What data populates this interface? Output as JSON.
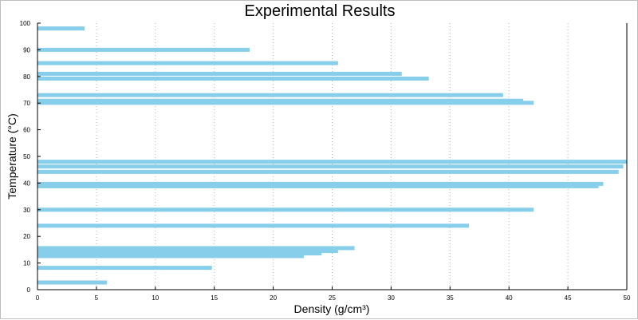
{
  "chart_data": {
    "type": "bar",
    "orientation": "horizontal",
    "title": "Experimental Results",
    "xlabel": "Density (g/cm³)",
    "ylabel": "Temperature (°C)",
    "xlim": [
      0,
      50
    ],
    "ylim": [
      0,
      100
    ],
    "x_ticks": [
      "0",
      "5",
      "10",
      "15",
      "20",
      "25",
      "30",
      "35",
      "40",
      "45",
      "50"
    ],
    "y_ticks": [
      "0",
      "10",
      "20",
      "30",
      "40",
      "50",
      "60",
      "70",
      "80",
      "90",
      "100"
    ],
    "grid": "vertical dotted",
    "bar_color": "#87ceeb",
    "bar_thickness": 1.5,
    "bars": [
      {
        "y": 98.0,
        "value": 4.0
      },
      {
        "y": 90.0,
        "value": 18.0
      },
      {
        "y": 85.0,
        "value": 25.5
      },
      {
        "y": 81.0,
        "value": 30.9
      },
      {
        "y": 79.2,
        "value": 33.2
      },
      {
        "y": 73.0,
        "value": 39.5
      },
      {
        "y": 70.9,
        "value": 41.2
      },
      {
        "y": 70.1,
        "value": 42.1
      },
      {
        "y": 48.0,
        "value": 50.0
      },
      {
        "y": 46.2,
        "value": 49.7
      },
      {
        "y": 44.2,
        "value": 49.3
      },
      {
        "y": 39.7,
        "value": 48.0
      },
      {
        "y": 38.8,
        "value": 47.6
      },
      {
        "y": 30.0,
        "value": 42.1
      },
      {
        "y": 24.0,
        "value": 36.6
      },
      {
        "y": 15.6,
        "value": 26.9
      },
      {
        "y": 14.5,
        "value": 25.5
      },
      {
        "y": 13.6,
        "value": 24.1
      },
      {
        "y": 12.6,
        "value": 22.6
      },
      {
        "y": 8.2,
        "value": 14.8
      },
      {
        "y": 2.7,
        "value": 5.9
      }
    ]
  }
}
